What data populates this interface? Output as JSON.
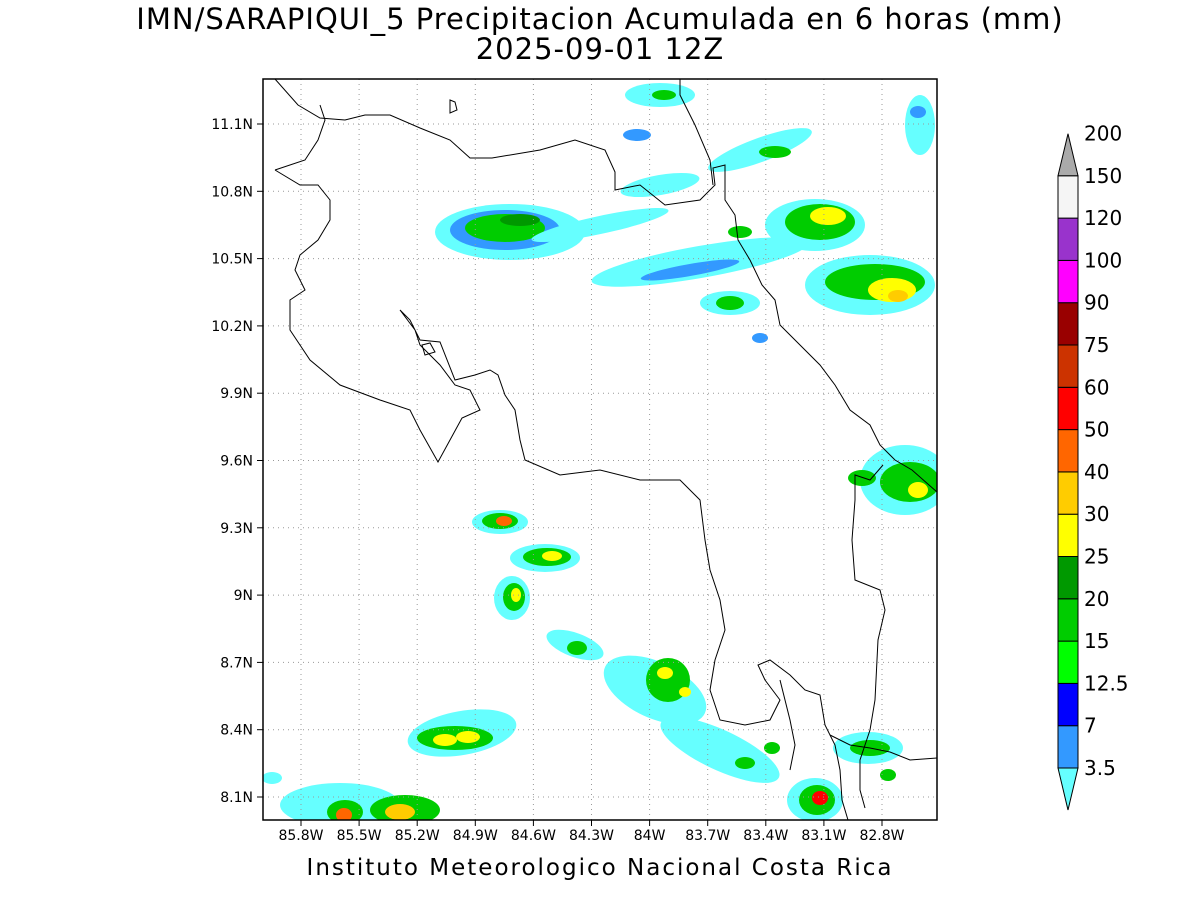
{
  "title": {
    "line1": "IMN/SARAPIQUI_5 Precipitacion Acumulada en 6 horas (mm)",
    "line2": "2025-09-01 12Z"
  },
  "footer": "Instituto Meteorologico Nacional Costa Rica",
  "axes": {
    "lat_labels": [
      "11.1N",
      "10.8N",
      "10.5N",
      "10.2N",
      "9.9N",
      "9.6N",
      "9.3N",
      "9N",
      "8.7N",
      "8.4N",
      "8.1N"
    ],
    "lon_labels": [
      "85.8W",
      "85.5W",
      "85.2W",
      "84.9W",
      "84.6W",
      "84.3W",
      "84W",
      "83.7W",
      "83.4W",
      "83.1W",
      "82.8W"
    ]
  },
  "colorbar": {
    "levels": [
      "3.5",
      "7",
      "12.5",
      "15",
      "20",
      "25",
      "30",
      "40",
      "50",
      "60",
      "75",
      "90",
      "100",
      "120",
      "150",
      "200"
    ],
    "colors": [
      "#66ffff",
      "#3399ff",
      "#0000ff",
      "#00ff00",
      "#00cc00",
      "#009900",
      "#ffff00",
      "#ffcc00",
      "#ff6600",
      "#ff0000",
      "#cc3300",
      "#990000",
      "#ff00ff",
      "#9933cc",
      "#f5f5f5",
      "#aaaaaa"
    ]
  }
}
